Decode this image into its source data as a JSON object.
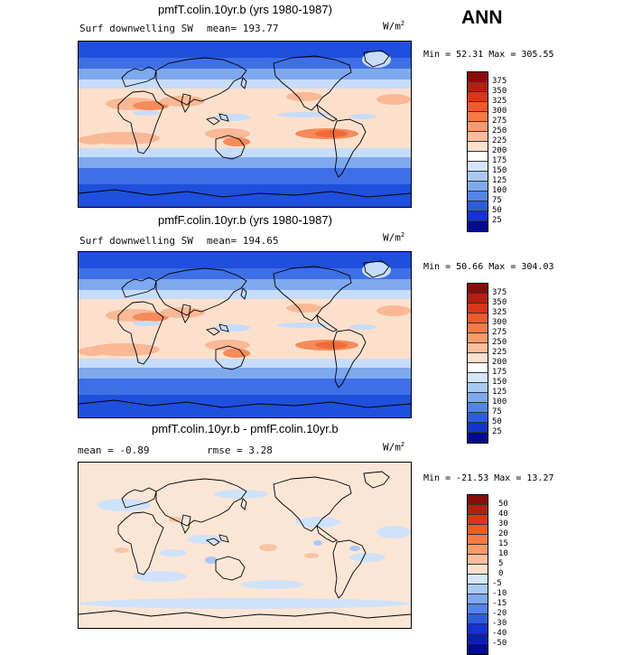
{
  "season_label": "ANN",
  "panels": [
    {
      "title": "pmfT.colin.10yr.b (yrs 1980-1987)",
      "left_label": "Surf downwelling SW",
      "mean_label": "mean= 193.77",
      "rmse_label": "",
      "units_base": "W/m",
      "units_exp": "2",
      "minmax": "Min =  52.31 Max = 305.55",
      "kind": "abs"
    },
    {
      "title": "pmfF.colin.10yr.b (yrs 1980-1987)",
      "left_label": "Surf downwelling SW",
      "mean_label": "mean= 194.65",
      "rmse_label": "",
      "units_base": "W/m",
      "units_exp": "2",
      "minmax": "Min =  50.66 Max = 304.03",
      "kind": "abs"
    },
    {
      "title": "pmfT.colin.10yr.b - pmfF.colin.10yr.b",
      "left_label": "mean =  -0.89",
      "mean_label": "",
      "rmse_label": "rmse =   3.28",
      "units_base": "W/m",
      "units_exp": "2",
      "minmax": "Min = -21.53 Max =  13.27",
      "kind": "diff"
    }
  ],
  "colorbars": {
    "abs": {
      "levels": [
        "375",
        "350",
        "325",
        "300",
        "275",
        "250",
        "225",
        "200",
        "175",
        "150",
        "125",
        "100",
        "75",
        "50",
        "25"
      ],
      "colors": [
        "#8c0a0a",
        "#b3200f",
        "#d9361a",
        "#f05a2a",
        "#f57a45",
        "#f89a6a",
        "#fbbe9a",
        "#fde0cc",
        "#ffffff",
        "#d4e6fb",
        "#a9c9f5",
        "#7fa9ee",
        "#5484e6",
        "#2e5ddb",
        "#1433cf",
        "#000b8f"
      ]
    },
    "diff": {
      "levels": [
        "50",
        "40",
        "30",
        "20",
        "15",
        "10",
        "5",
        "0",
        "-5",
        "-10",
        "-15",
        "-20",
        "-30",
        "-40",
        "-50"
      ],
      "colors": [
        "#8c0a0a",
        "#b3200f",
        "#d9361a",
        "#f05a2a",
        "#f57a45",
        "#f89a6a",
        "#fbbe9a",
        "#fde0cc",
        "#d4e6fb",
        "#a9c9f5",
        "#7fa9ee",
        "#5484e6",
        "#2e5ddb",
        "#1433cf",
        "#0a1fb0",
        "#000b8f"
      ]
    }
  },
  "map_colors": {
    "polar": "#1f4fdc",
    "high_lat": "#3f6fe6",
    "mid_blue": "#7fa9ee",
    "light_blue": "#c6dcf8",
    "pale": "#fde0cc",
    "peach": "#f9b896",
    "orange": "#f58a5a",
    "strong": "#ef6a3a",
    "land_line": "#000000",
    "diff_base": "#fbe6d6",
    "diff_blue": "#cfe2fa",
    "diff_blue2": "#a9c9f5",
    "diff_warm": "#f8c4a4"
  }
}
